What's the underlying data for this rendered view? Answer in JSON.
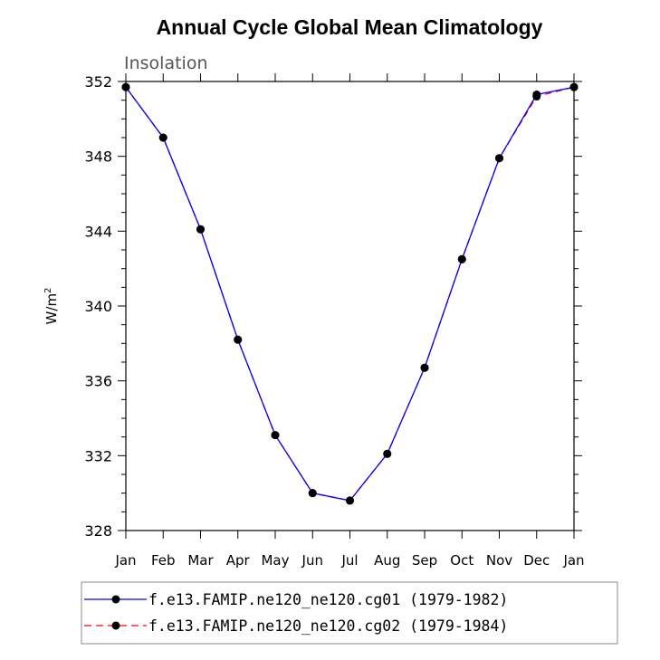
{
  "colors": {
    "series1": "#0000ff",
    "series2": "#ff0000",
    "marker": "#000000",
    "axis": "#000000",
    "legend_border": "#888888"
  },
  "chart_data": {
    "type": "line",
    "title": "Annual Cycle Global Mean Climatology",
    "subtitle": "Insolation",
    "xlabel": "",
    "ylabel": "W/m",
    "ylabel_superscript": "2",
    "categories": [
      "Jan",
      "Feb",
      "Mar",
      "Apr",
      "May",
      "Jun",
      "Jul",
      "Aug",
      "Sep",
      "Oct",
      "Nov",
      "Dec",
      "Jan"
    ],
    "yticks": [
      "328",
      "332",
      "336",
      "340",
      "344",
      "348",
      "352"
    ],
    "yrange": [
      328,
      352
    ],
    "y_minor_step": 1,
    "y_major_step": 4,
    "legend_position": "bottom",
    "series": [
      {
        "name": "f.e13.FAMIP.ne120_ne120.cg01 (1979-1982)",
        "line_style": "solid",
        "values": [
          351.7,
          349.0,
          344.1,
          338.2,
          333.1,
          330.0,
          329.6,
          332.1,
          336.7,
          342.5,
          347.9,
          351.3,
          351.7
        ]
      },
      {
        "name": "f.e13.FAMIP.ne120_ne120.cg02 (1979-1984)",
        "line_style": "dashed",
        "values": [
          351.7,
          349.0,
          344.1,
          338.2,
          333.1,
          330.0,
          329.6,
          332.1,
          336.7,
          342.5,
          347.9,
          351.2,
          351.7
        ]
      }
    ]
  }
}
